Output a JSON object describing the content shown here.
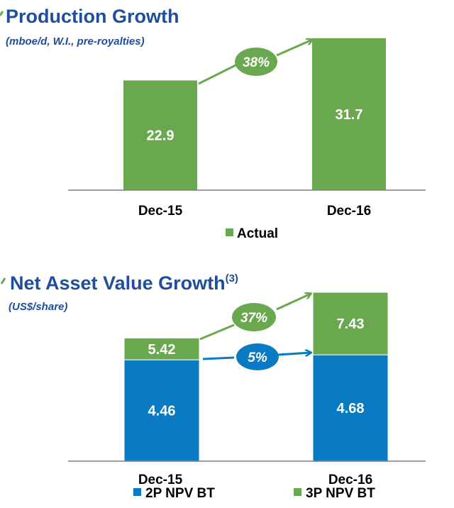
{
  "colors": {
    "title": "#1f4e9c",
    "green": "#6aa84f",
    "blue": "#0a7bc2",
    "axis": "#7f7f7f"
  },
  "chart_data": [
    {
      "type": "bar",
      "title": "Production Growth",
      "subtitle": "(mboe/d, W.I., pre-royalties)",
      "categories": [
        "Dec-15",
        "Dec-16"
      ],
      "series": [
        {
          "name": "Actual",
          "values": [
            22.9,
            31.7
          ],
          "labels": [
            "22.9",
            "31.7"
          ]
        }
      ],
      "annotations": [
        {
          "text": "38%",
          "color": "green"
        }
      ],
      "legend": "bottom-center",
      "ylim": [
        0,
        31.7
      ],
      "grid": false
    },
    {
      "type": "bar",
      "stacked": true,
      "title": "Net Asset Value Growth",
      "title_superscript": "(3)",
      "subtitle": "(US$/share)",
      "categories": [
        "Dec-15",
        "Dec-16"
      ],
      "series": [
        {
          "name": "2P NPV BT",
          "color": "blue",
          "values": [
            4.46,
            4.68
          ],
          "labels": [
            "4.46",
            "4.68"
          ]
        },
        {
          "name": "3P NPV BT",
          "color": "green",
          "values": [
            0.96,
            2.75
          ],
          "labels": [
            "5.42",
            "7.43"
          ]
        }
      ],
      "annotations": [
        {
          "text": "37%",
          "color": "green"
        },
        {
          "text": "5%",
          "color": "blue"
        }
      ],
      "legend": "bottom",
      "ylim": [
        0,
        7.43
      ],
      "grid": false
    }
  ]
}
